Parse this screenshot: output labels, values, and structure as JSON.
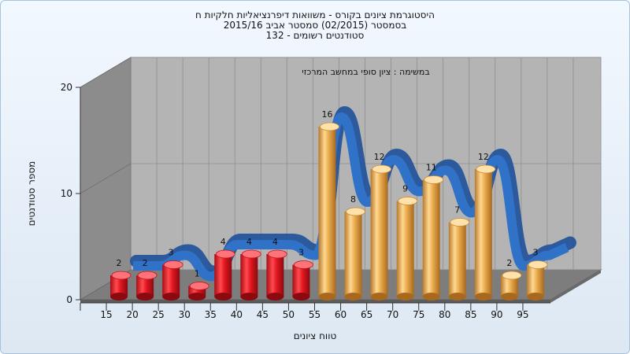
{
  "chart_data": {
    "type": "bar",
    "title_lines": [
      "היסטוגרמת ציונים בקורס - משוואות דיפרנציאליות חלקיות ח",
      "בסמסטר   (02/2015)   סמסטר אביב 2015/16",
      "סטודנטים רשומים - 132"
    ],
    "annotation": "במשימה : ציון סופי במחשב המרכזי",
    "xlabel": "טווח ציונים",
    "ylabel": "מספר סטודנטים",
    "y_ticks": [
      "0",
      "10",
      "20"
    ],
    "ylim": [
      0,
      20
    ],
    "categories": [
      "15",
      "20",
      "25",
      "30",
      "35",
      "40",
      "45",
      "50",
      "55",
      "60",
      "65",
      "70",
      "75",
      "80",
      "85",
      "90",
      "95"
    ],
    "values": [
      2,
      2,
      3,
      1,
      4,
      4,
      4,
      3,
      16,
      8,
      12,
      9,
      11,
      7,
      12,
      2,
      3
    ],
    "fail_color": "#e0151f",
    "pass_color": "#e8a94a",
    "curve_color": "#2f72c8",
    "wall_color": "#b4b4b4",
    "side_wall_color": "#8c8c8c",
    "grid": true
  }
}
